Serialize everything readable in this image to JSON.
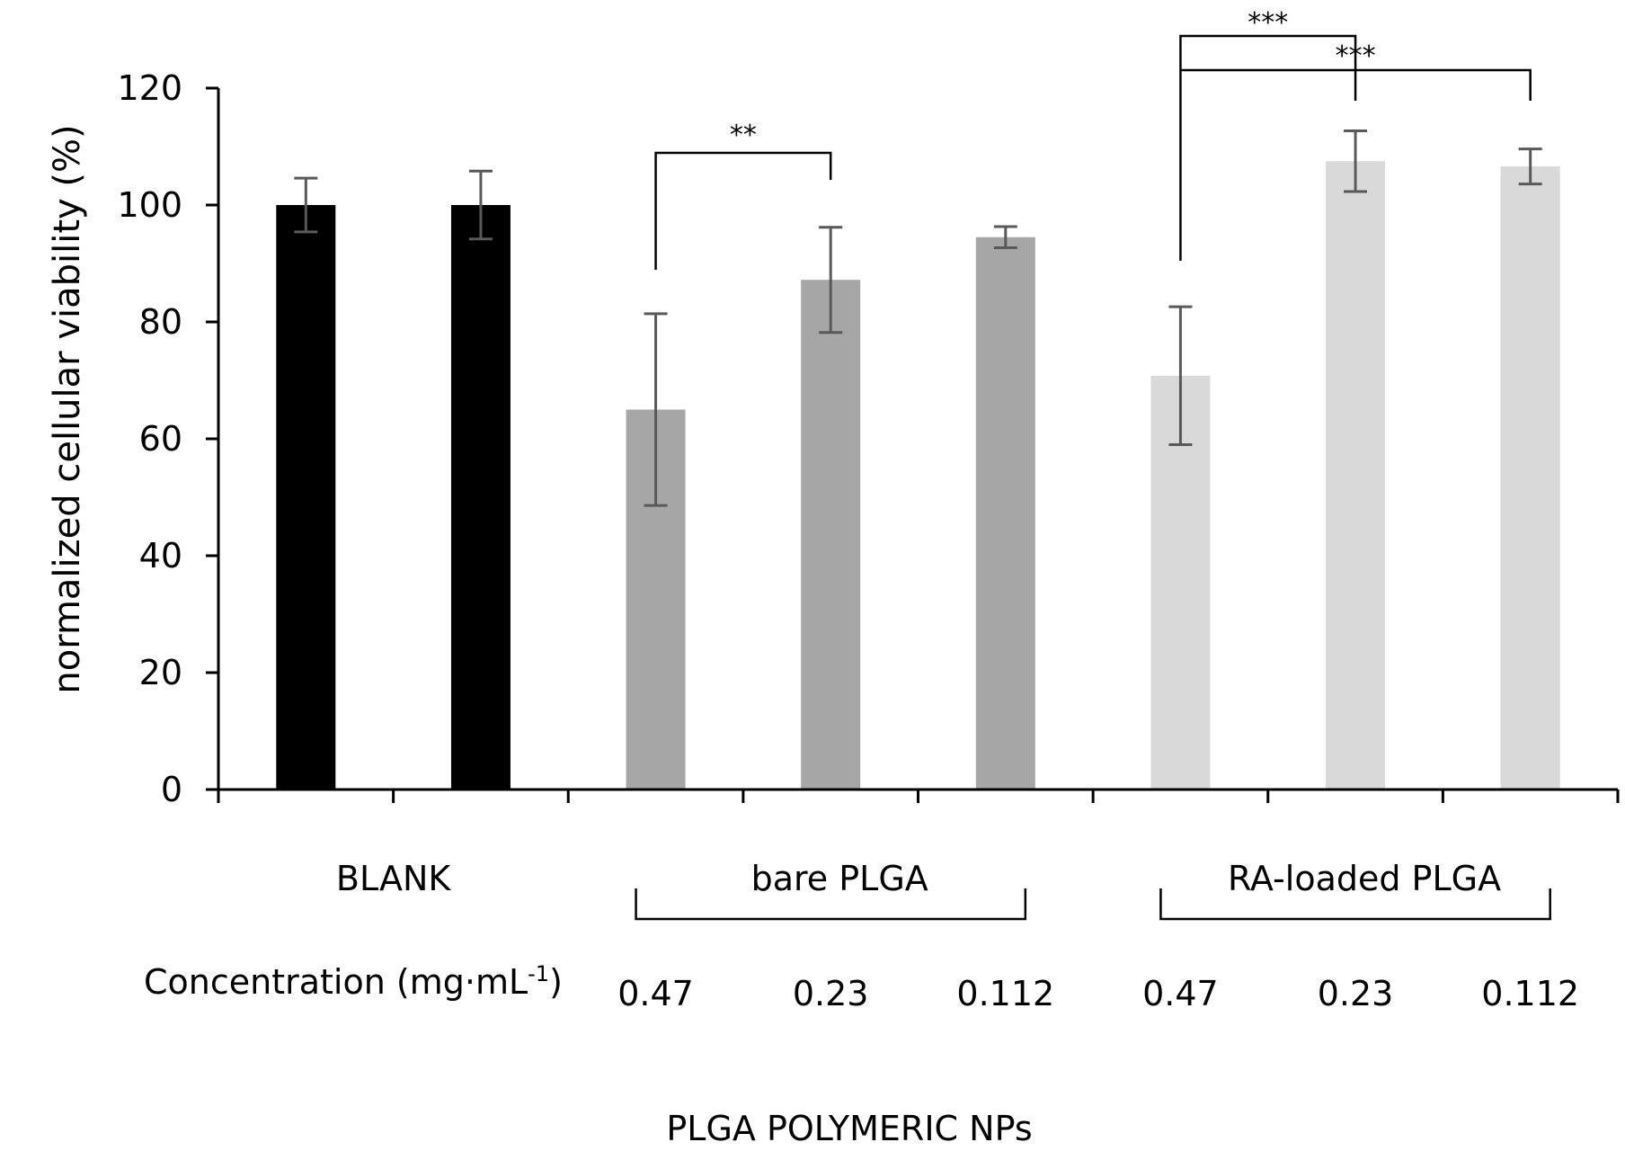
{
  "chart_data": {
    "type": "bar",
    "title": "",
    "ylabel": "normalized cellular viability (%)",
    "xlabel": "PLGA POLYMERIC NPs",
    "ylim": [
      0,
      120
    ],
    "yticks": [
      0,
      20,
      40,
      60,
      80,
      100,
      120
    ],
    "grid": false,
    "legend": "none",
    "concentration_label": "Concentration (mg·mL",
    "concentration_sup": "-1",
    "concentration_close": ")",
    "groups": [
      {
        "name": "BLANK",
        "color": "#000000",
        "bracket": false
      },
      {
        "name": "bare PLGA",
        "color": "#a6a6a6",
        "bracket": true
      },
      {
        "name": "RA-loaded PLGA",
        "color": "#d9d9d9",
        "bracket": true
      }
    ],
    "bars": [
      {
        "group": 0,
        "concentration": "",
        "value": 100,
        "error": 4.6
      },
      {
        "group": 0,
        "concentration": "",
        "value": 100,
        "error": 5.8
      },
      {
        "group": 1,
        "concentration": "0.47",
        "value": 65,
        "error": 16.4
      },
      {
        "group": 1,
        "concentration": "0.23",
        "value": 87.2,
        "error": 9.0
      },
      {
        "group": 1,
        "concentration": "0.112",
        "value": 94.5,
        "error": 1.8
      },
      {
        "group": 2,
        "concentration": "0.47",
        "value": 70.8,
        "error": 11.8
      },
      {
        "group": 2,
        "concentration": "0.23",
        "value": 107.5,
        "error": 5.2
      },
      {
        "group": 2,
        "concentration": "0.112",
        "value": 106.6,
        "error": 3.0
      }
    ],
    "significance": [
      {
        "from": 2,
        "to": 3,
        "label": "**"
      },
      {
        "from": 5,
        "to": 6,
        "label": "***"
      },
      {
        "from": 5,
        "to": 7,
        "label": "***"
      }
    ]
  }
}
